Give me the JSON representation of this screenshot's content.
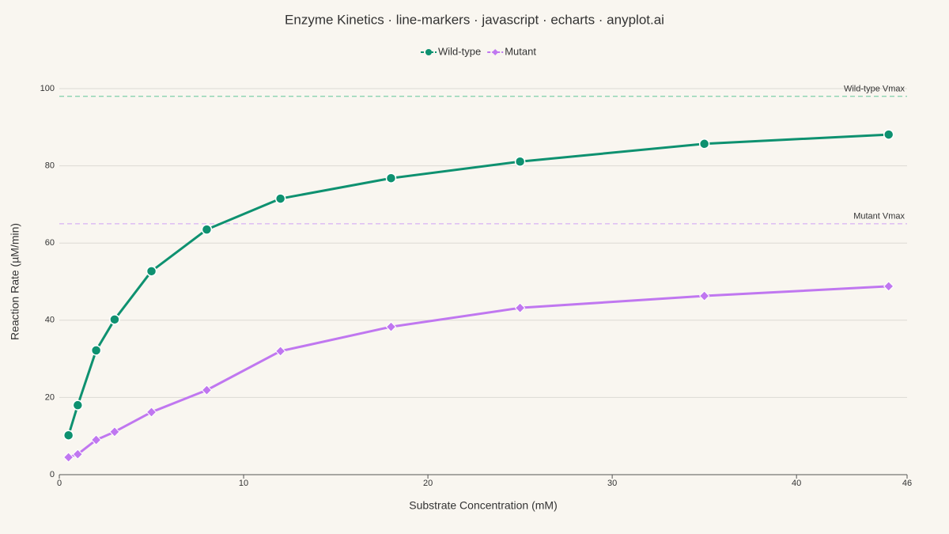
{
  "chart_data": {
    "type": "line",
    "title": "Enzyme Kinetics · line-markers · javascript · echarts · anyplot.ai",
    "x_label": "Substrate Concentration (mM)",
    "y_label": "Reaction Rate (µM/min)",
    "x": [
      0.5,
      1,
      2,
      3,
      5,
      8,
      12,
      18,
      25,
      35,
      45
    ],
    "series": [
      {
        "name": "Wild-type",
        "color": "#0e9170",
        "marker": "circle",
        "values": [
          10.2,
          18.0,
          32.2,
          40.2,
          52.7,
          63.5,
          71.5,
          76.8,
          81.1,
          85.7,
          88.1
        ]
      },
      {
        "name": "Mutant",
        "color": "#c077f0",
        "marker": "diamond",
        "values": [
          4.5,
          5.3,
          9.0,
          11.1,
          16.2,
          21.9,
          32.0,
          38.3,
          43.2,
          46.3,
          48.8
        ]
      }
    ],
    "reference_lines": [
      {
        "label": "Wild-type Vmax",
        "value": 98,
        "color": "#7fcfa9"
      },
      {
        "label": "Mutant Vmax",
        "value": 65,
        "color": "#dbb8f5"
      }
    ],
    "xlim": [
      0,
      46
    ],
    "xticks": [
      0,
      10,
      20,
      30,
      40,
      46
    ],
    "ylim": [
      0,
      100
    ],
    "yticks": [
      0,
      20,
      40,
      60,
      80,
      100
    ],
    "grid": true,
    "legend": "top"
  }
}
